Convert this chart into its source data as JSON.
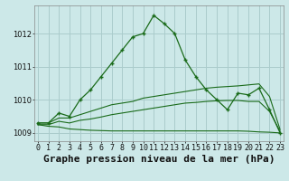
{
  "title": "Graphe pression niveau de la mer (hPa)",
  "background_color": "#cce8e8",
  "grid_color": "#aacccc",
  "line_color": "#1a6b1a",
  "x_labels": [
    "0",
    "1",
    "2",
    "3",
    "4",
    "5",
    "6",
    "7",
    "8",
    "9",
    "10",
    "11",
    "12",
    "13",
    "14",
    "15",
    "16",
    "17",
    "18",
    "19",
    "20",
    "21",
    "22",
    "23"
  ],
  "hours": [
    0,
    1,
    2,
    3,
    4,
    5,
    6,
    7,
    8,
    9,
    10,
    11,
    12,
    13,
    14,
    15,
    16,
    17,
    18,
    19,
    20,
    21,
    22,
    23
  ],
  "main_line": [
    1009.3,
    1009.3,
    1009.6,
    1009.5,
    1010.0,
    1010.3,
    1010.7,
    1011.1,
    1011.5,
    1011.9,
    1012.0,
    1012.55,
    1012.3,
    1012.0,
    1011.2,
    1010.7,
    1010.3,
    1010.0,
    1009.7,
    1010.2,
    1010.15,
    1010.35,
    1009.7,
    1009.0
  ],
  "line2": [
    1009.3,
    1009.3,
    1009.45,
    1009.45,
    1009.55,
    1009.65,
    1009.75,
    1009.85,
    1009.9,
    1009.95,
    1010.05,
    1010.1,
    1010.15,
    1010.2,
    1010.25,
    1010.3,
    1010.35,
    1010.38,
    1010.4,
    1010.42,
    1010.45,
    1010.48,
    1010.1,
    1009.1
  ],
  "line3": [
    1009.25,
    1009.25,
    1009.35,
    1009.3,
    1009.38,
    1009.42,
    1009.48,
    1009.55,
    1009.6,
    1009.65,
    1009.7,
    1009.75,
    1009.8,
    1009.85,
    1009.9,
    1009.92,
    1009.95,
    1009.97,
    1009.98,
    1009.98,
    1009.95,
    1009.95,
    1009.65,
    1009.05
  ],
  "line4": [
    1009.25,
    1009.2,
    1009.18,
    1009.12,
    1009.1,
    1009.08,
    1009.07,
    1009.06,
    1009.06,
    1009.06,
    1009.06,
    1009.06,
    1009.06,
    1009.06,
    1009.06,
    1009.06,
    1009.06,
    1009.06,
    1009.06,
    1009.06,
    1009.05,
    1009.03,
    1009.02,
    1009.0
  ],
  "ylim": [
    1008.75,
    1012.85
  ],
  "yticks": [
    1009,
    1010,
    1011,
    1012
  ],
  "title_fontsize": 8,
  "tick_fontsize": 6
}
